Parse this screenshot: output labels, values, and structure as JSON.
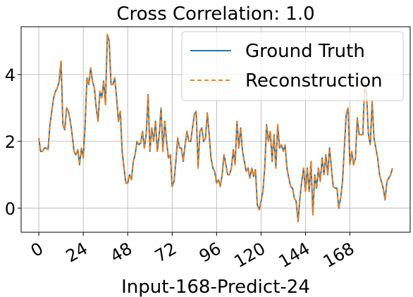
{
  "chart_data": {
    "type": "line",
    "title": "Cross Correlation: 1.0",
    "x_label": "Input-168-Predict-24",
    "x": [
      0,
      1,
      2,
      3,
      4,
      5,
      6,
      7,
      8,
      9,
      10,
      11,
      12,
      13,
      14,
      15,
      16,
      17,
      18,
      19,
      20,
      21,
      22,
      23,
      24,
      25,
      26,
      27,
      28,
      29,
      30,
      31,
      32,
      33,
      34,
      35,
      36,
      37,
      38,
      39,
      40,
      41,
      42,
      43,
      44,
      45,
      46,
      47,
      48,
      49,
      50,
      51,
      52,
      53,
      54,
      55,
      56,
      57,
      58,
      59,
      60,
      61,
      62,
      63,
      64,
      65,
      66,
      67,
      68,
      69,
      70,
      71,
      72,
      73,
      74,
      75,
      76,
      77,
      78,
      79,
      80,
      81,
      82,
      83,
      84,
      85,
      86,
      87,
      88,
      89,
      90,
      91,
      92,
      93,
      94,
      95,
      96,
      97,
      98,
      99,
      100,
      101,
      102,
      103,
      104,
      105,
      106,
      107,
      108,
      109,
      110,
      111,
      112,
      113,
      114,
      115,
      116,
      117,
      118,
      119,
      120,
      121,
      122,
      123,
      124,
      125,
      126,
      127,
      128,
      129,
      130,
      131,
      132,
      133,
      134,
      135,
      136,
      137,
      138,
      139,
      140,
      141,
      142,
      143,
      144,
      145,
      146,
      147,
      148,
      149,
      150,
      151,
      152,
      153,
      154,
      155,
      156,
      157,
      158,
      159,
      160,
      161,
      162,
      163,
      164,
      165,
      166,
      167,
      168,
      169,
      170,
      171,
      172,
      173,
      174,
      175,
      176,
      177,
      178,
      179,
      180,
      181,
      182,
      183,
      184,
      185,
      186,
      187,
      188,
      189,
      190,
      191
    ],
    "series": [
      {
        "name": "Ground Truth",
        "color": "#1f77b4",
        "dash": false,
        "values": [
          2.1,
          1.7,
          1.7,
          1.8,
          1.8,
          1.75,
          2.5,
          2.9,
          3.3,
          3.5,
          3.6,
          3.8,
          4.4,
          2.5,
          2.35,
          3.0,
          2.9,
          2.6,
          2.2,
          1.7,
          1.6,
          1.75,
          1.3,
          1.8,
          1.5,
          2.5,
          3.9,
          3.7,
          4.2,
          3.8,
          3.6,
          3.0,
          2.6,
          3.5,
          3.3,
          3.8,
          3.1,
          5.2,
          5.0,
          3.7,
          3.7,
          3.9,
          3.3,
          2.6,
          2.9,
          1.7,
          1.2,
          0.75,
          0.75,
          1.0,
          0.85,
          1.4,
          1.6,
          2.0,
          1.9,
          1.95,
          2.3,
          1.8,
          2.2,
          3.4,
          1.7,
          2.4,
          2.0,
          2.6,
          1.7,
          2.2,
          3.0,
          1.7,
          2.6,
          2.0,
          1.5,
          1.6,
          0.65,
          0.8,
          1.4,
          2.1,
          1.8,
          1.8,
          1.4,
          1.9,
          2.3,
          2.0,
          2.0,
          2.4,
          2.8,
          2.9,
          1.2,
          2.3,
          2.4,
          2.0,
          2.1,
          2.85,
          2.2,
          1.5,
          1.2,
          1.1,
          0.75,
          0.85,
          0.65,
          1.0,
          1.6,
          1.3,
          1.0,
          1.0,
          1.2,
          1.75,
          1.3,
          2.6,
          1.8,
          2.4,
          1.7,
          1.4,
          1.1,
          1.2,
          0.9,
          1.2,
          0.95,
          1.15,
          0.1,
          -0.05,
          0.2,
          0.5,
          1.2,
          2.5,
          2.0,
          2.3,
          1.4,
          2.2,
          1.2,
          2.5,
          1.8,
          1.9,
          1.7,
          1.9,
          1.2,
          0.9,
          0.65,
          0.6,
          0.3,
          0.2,
          -0.4,
          0.3,
          0.8,
          1.2,
          0.5,
          1.2,
          0.5,
          1.4,
          -0.2,
          1.0,
          0.6,
          1.2,
          0.8,
          1.5,
          1.0,
          1.6,
          1.0,
          1.8,
          1.2,
          0.65,
          0.6,
          0.6,
          0.0,
          0.3,
          0.8,
          1.8,
          2.8,
          3.0,
          1.3,
          1.7,
          1.3,
          1.5,
          2.7,
          2.2,
          2.2,
          2.2,
          3.8,
          3.4,
          2.2,
          1.9,
          3.2,
          2.1,
          1.8,
          1.5,
          1.0,
          0.8,
          0.6,
          0.25,
          0.8,
          0.9,
          1.0,
          1.2
        ]
      },
      {
        "name": "Reconstruction",
        "color": "#ff7f0e",
        "dash": true,
        "values": [
          2.1,
          1.7,
          1.7,
          1.8,
          1.8,
          1.75,
          2.5,
          2.9,
          3.3,
          3.5,
          3.6,
          3.8,
          4.4,
          2.5,
          2.35,
          3.0,
          2.9,
          2.6,
          2.2,
          1.7,
          1.6,
          1.75,
          1.3,
          1.8,
          1.5,
          2.5,
          3.9,
          3.7,
          4.2,
          3.8,
          3.6,
          3.0,
          2.6,
          3.5,
          3.3,
          3.8,
          3.1,
          5.2,
          5.0,
          3.7,
          3.7,
          3.9,
          3.3,
          2.6,
          2.9,
          1.7,
          1.2,
          0.75,
          0.75,
          1.0,
          0.85,
          1.4,
          1.6,
          2.0,
          1.9,
          1.95,
          2.3,
          1.8,
          2.2,
          3.4,
          1.7,
          2.4,
          2.0,
          2.6,
          1.7,
          2.2,
          3.0,
          1.7,
          2.6,
          2.0,
          1.5,
          1.6,
          0.65,
          0.8,
          1.4,
          2.1,
          1.8,
          1.8,
          1.4,
          1.9,
          2.3,
          2.0,
          2.0,
          2.4,
          2.8,
          2.9,
          1.2,
          2.3,
          2.4,
          2.0,
          2.1,
          2.85,
          2.2,
          1.5,
          1.2,
          1.1,
          0.75,
          0.85,
          0.65,
          1.0,
          1.6,
          1.3,
          1.0,
          1.0,
          1.2,
          1.75,
          1.3,
          2.6,
          1.8,
          2.4,
          1.7,
          1.4,
          1.1,
          1.2,
          0.9,
          1.2,
          0.95,
          1.15,
          0.1,
          -0.05,
          0.2,
          0.5,
          1.2,
          2.5,
          2.0,
          2.3,
          1.4,
          2.2,
          1.2,
          2.5,
          1.8,
          1.9,
          1.7,
          1.9,
          1.2,
          0.9,
          0.65,
          0.6,
          0.3,
          0.2,
          -0.4,
          0.3,
          0.8,
          1.2,
          0.5,
          1.2,
          0.5,
          1.4,
          -0.2,
          1.0,
          0.6,
          1.2,
          0.8,
          1.5,
          1.0,
          1.6,
          1.0,
          1.8,
          1.2,
          0.65,
          0.6,
          0.6,
          0.0,
          0.3,
          0.8,
          1.8,
          2.8,
          3.0,
          1.3,
          1.7,
          1.3,
          1.5,
          2.7,
          2.2,
          2.2,
          2.2,
          3.8,
          3.4,
          2.2,
          1.9,
          3.2,
          2.1,
          1.8,
          1.5,
          1.0,
          0.8,
          0.6,
          0.25,
          0.8,
          0.9,
          1.0,
          1.2
        ]
      }
    ],
    "xlim": [
      -9.55,
      200.55
    ],
    "xticks": [
      0,
      24,
      48,
      72,
      96,
      120,
      144,
      168
    ],
    "ylim": [
      -0.72,
      5.43
    ],
    "yticks": [
      0,
      2,
      4
    ],
    "grid": true,
    "legend": "upper right"
  }
}
